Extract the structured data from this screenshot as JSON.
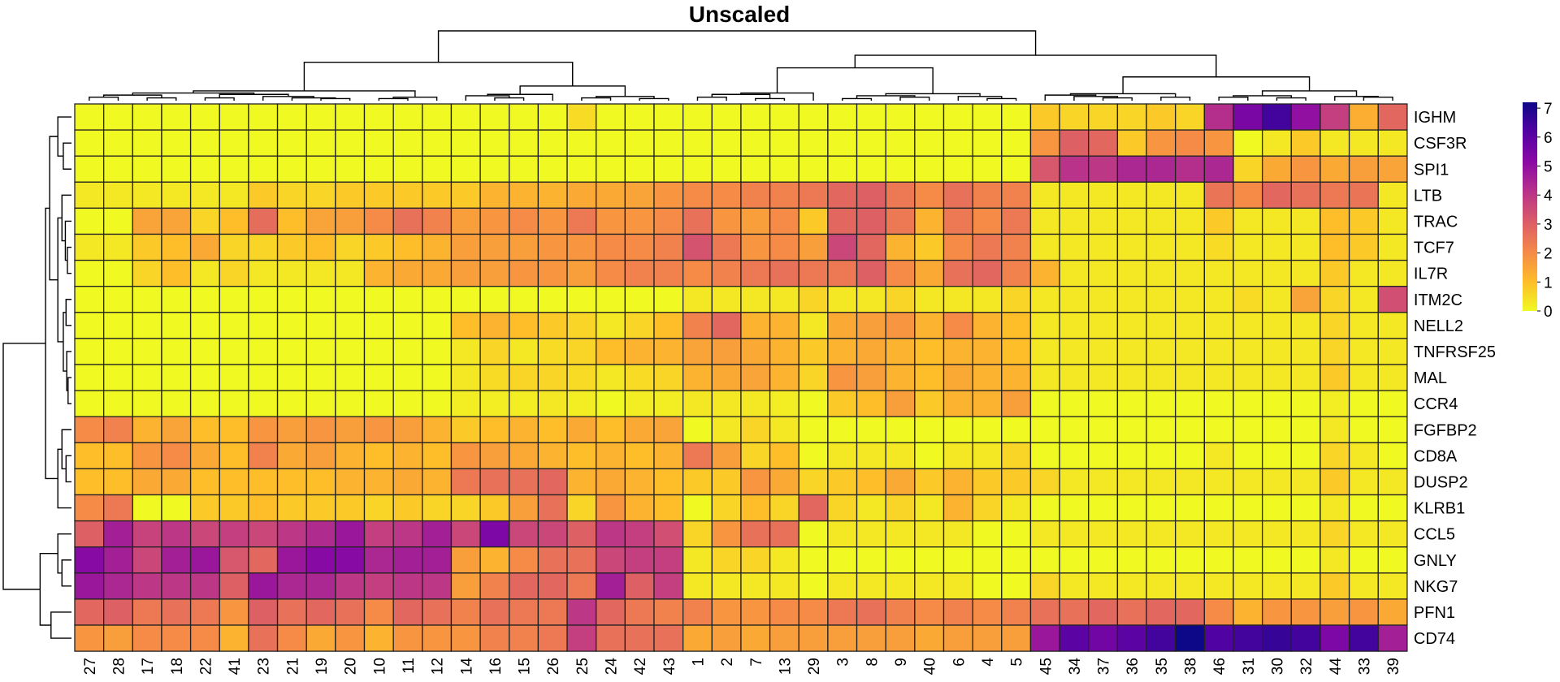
{
  "chart_data": {
    "type": "heatmap",
    "title": "Unscaled",
    "rows": [
      "IGHM",
      "CSF3R",
      "SPI1",
      "LTB",
      "TRAC",
      "TCF7",
      "IL7R",
      "ITM2C",
      "NELL2",
      "TNFRSF25",
      "MAL",
      "CCR4",
      "FGFBP2",
      "CD8A",
      "DUSP2",
      "KLRB1",
      "CCL5",
      "GNLY",
      "NKG7",
      "PFN1",
      "CD74"
    ],
    "columns": [
      "27",
      "28",
      "17",
      "18",
      "22",
      "41",
      "23",
      "21",
      "19",
      "20",
      "10",
      "11",
      "12",
      "14",
      "16",
      "15",
      "26",
      "25",
      "24",
      "42",
      "43",
      "1",
      "2",
      "7",
      "13",
      "29",
      "3",
      "8",
      "9",
      "40",
      "6",
      "4",
      "5",
      "45",
      "34",
      "37",
      "36",
      "35",
      "38",
      "46",
      "31",
      "30",
      "32",
      "44",
      "33",
      "39"
    ],
    "values": [
      [
        0,
        0,
        0,
        0,
        0,
        0,
        0,
        0,
        0,
        0,
        0,
        0,
        0,
        0,
        0,
        0,
        0,
        0.5,
        0,
        0,
        0,
        0,
        0,
        0,
        0,
        0,
        0,
        0,
        0,
        0,
        0,
        0,
        0,
        0.8,
        0.6,
        0.6,
        0.6,
        0.8,
        0.6,
        4.2,
        5.5,
        6.4,
        5,
        3.8,
        1.3,
        2.8
      ],
      [
        0,
        0,
        0,
        0,
        0,
        0,
        0,
        0,
        0,
        0,
        0,
        0,
        0,
        0,
        0,
        0,
        0,
        0,
        0,
        0,
        0,
        0,
        0,
        0,
        0,
        0,
        0,
        0,
        0,
        0,
        0,
        0,
        0,
        1.8,
        3,
        2.8,
        0.8,
        1.8,
        2,
        1.8,
        0,
        0.3,
        0.8,
        0.3,
        0.3,
        0.3
      ],
      [
        0,
        0,
        0,
        0,
        0,
        0,
        0,
        0,
        0,
        0,
        0,
        0,
        0,
        0,
        0,
        0,
        0,
        0,
        0,
        0,
        0,
        0,
        0,
        0,
        0,
        0,
        0,
        0,
        0,
        0,
        0,
        0,
        0,
        3.2,
        4.1,
        4,
        4.4,
        4.4,
        4.2,
        4.4,
        0.6,
        1.4,
        1.8,
        1.4,
        1.6,
        1.5
      ],
      [
        0.3,
        0.3,
        0.3,
        0.3,
        0.3,
        0.3,
        0.8,
        0.6,
        0.6,
        0.8,
        0.8,
        0.8,
        0.8,
        0.8,
        1.2,
        1.2,
        1.2,
        1.4,
        1.4,
        1.5,
        1.8,
        2,
        2,
        2.2,
        2.2,
        2.4,
        2.8,
        3,
        2.4,
        2,
        2.6,
        2.2,
        2.2,
        0.3,
        0.3,
        0.3,
        0.3,
        0.3,
        0.3,
        2.5,
        2,
        2.8,
        2.6,
        2.4,
        2.5,
        0.3
      ],
      [
        0,
        0,
        1.5,
        1.5,
        0.6,
        1,
        2.7,
        1,
        1.5,
        1.6,
        2,
        2.6,
        2.2,
        1.6,
        1.8,
        2,
        1.8,
        2.4,
        1.8,
        1.8,
        2,
        2.6,
        1.8,
        1.6,
        2,
        0.8,
        2.8,
        3,
        2.4,
        1.2,
        2.4,
        2,
        2.4,
        0.3,
        0.3,
        0.3,
        0.3,
        0.3,
        0.3,
        0.8,
        0.3,
        0.3,
        0.3,
        1,
        0.8,
        0.3
      ],
      [
        0.3,
        0.3,
        0.8,
        1,
        1.4,
        0.6,
        0.6,
        0.8,
        1,
        0.6,
        0.8,
        1,
        1.2,
        1.6,
        1.6,
        1.6,
        1.8,
        1.8,
        2,
        2,
        2.2,
        3.3,
        2.4,
        1.8,
        2,
        1.6,
        3.6,
        2.8,
        1.2,
        0.8,
        2,
        2.4,
        2.2,
        0.3,
        0.3,
        0.3,
        0.3,
        0.3,
        0.3,
        0.5,
        0.3,
        0.3,
        0.3,
        1,
        0.8,
        0.3
      ],
      [
        0,
        0,
        0.6,
        1,
        0.3,
        0.6,
        0.3,
        0.3,
        0.3,
        0.3,
        1.2,
        1.4,
        1.4,
        1.6,
        1.6,
        1.8,
        1.8,
        1.6,
        2,
        2.2,
        2.2,
        2,
        2.2,
        2.4,
        2.6,
        2.4,
        2.4,
        3,
        2,
        1.4,
        2.6,
        2.8,
        2.2,
        1.2,
        0.3,
        0.3,
        0.3,
        0.3,
        0.3,
        0.3,
        0.3,
        0.3,
        0.3,
        0.8,
        0.3,
        0.3
      ],
      [
        0,
        0,
        0,
        0,
        0,
        0,
        0,
        0,
        0,
        0,
        0,
        0,
        0,
        0,
        0,
        0,
        0,
        0,
        0,
        0,
        0,
        0.3,
        0.3,
        0.3,
        0.3,
        0.6,
        0.3,
        0.3,
        0.6,
        0.3,
        0.3,
        0.3,
        0.6,
        0.3,
        0.3,
        0.3,
        0.3,
        0.3,
        0.3,
        0.3,
        0.5,
        0.3,
        1.5,
        0.6,
        0.3,
        3.4
      ],
      [
        0,
        0,
        0,
        0,
        0,
        0,
        0,
        0,
        0,
        0,
        0,
        0,
        0,
        1,
        1.2,
        1,
        0.8,
        0.6,
        0.3,
        0.6,
        1,
        2.2,
        2.8,
        1.2,
        1.2,
        0.3,
        1.4,
        1.6,
        1.8,
        1.2,
        2,
        1.2,
        1,
        0.3,
        0.3,
        0.3,
        0.3,
        0.3,
        0.3,
        0.3,
        0.3,
        0.3,
        0.3,
        0.6,
        0.3,
        0.3
      ],
      [
        0,
        0,
        0,
        0,
        0,
        0,
        0,
        0,
        0,
        0,
        0,
        0,
        0,
        0.3,
        0.6,
        0.3,
        0.5,
        0.6,
        1,
        1.2,
        1.2,
        1.5,
        1.6,
        1.4,
        1.2,
        0.8,
        1.2,
        1.4,
        1.2,
        1,
        1.2,
        1.2,
        1,
        0.3,
        0.3,
        0.3,
        0.3,
        0.3,
        0.3,
        0.3,
        0.3,
        0.3,
        0.3,
        0.6,
        0.3,
        0.3
      ],
      [
        0,
        0,
        0,
        0,
        0,
        0,
        0,
        0,
        0,
        0,
        0,
        0,
        0,
        0.3,
        0.5,
        0.6,
        0.6,
        0.5,
        0.3,
        0.5,
        0.6,
        1.2,
        1.4,
        1.5,
        1.2,
        0.6,
        1.8,
        1.6,
        1.2,
        1,
        1.4,
        1.2,
        1.2,
        0.3,
        0.3,
        0.3,
        0.3,
        0.3,
        0.3,
        0.3,
        0.3,
        0.3,
        0.3,
        0.8,
        0.3,
        0.3
      ],
      [
        0,
        0,
        0,
        0,
        0,
        0,
        0,
        0,
        0,
        0,
        0,
        0,
        0,
        0.2,
        0.2,
        0.2,
        0.3,
        0.2,
        0,
        0.2,
        0.2,
        0.3,
        0.3,
        0.3,
        0.2,
        0,
        0.8,
        1,
        1.6,
        0.8,
        1.2,
        1.2,
        1.6,
        0,
        0,
        0,
        0,
        0,
        0,
        0,
        0,
        0,
        0,
        0.2,
        0,
        0
      ],
      [
        2,
        2.2,
        1.2,
        1.5,
        1,
        1,
        1.8,
        1.6,
        1.8,
        1.6,
        1.8,
        1.6,
        1.2,
        0.8,
        1,
        1.2,
        1,
        1.4,
        1,
        1.4,
        1.5,
        0,
        0.3,
        0.6,
        0.3,
        0,
        0,
        0,
        0,
        0,
        0,
        0,
        0,
        0,
        0,
        0,
        0,
        0,
        0,
        0,
        0,
        0,
        0,
        0.3,
        0,
        0
      ],
      [
        1,
        1,
        1.8,
        2,
        1.4,
        1,
        2.2,
        1.4,
        1.6,
        1.2,
        1,
        1.2,
        1,
        1.8,
        1.6,
        1.4,
        1.2,
        1,
        1.2,
        1,
        1.2,
        2.4,
        1.6,
        0.6,
        1,
        0,
        0.3,
        0.3,
        0.3,
        0,
        0.3,
        0.3,
        0.6,
        0,
        0,
        0,
        0,
        0,
        0,
        0.3,
        0,
        0,
        0,
        0.6,
        0.3,
        0
      ],
      [
        1,
        1,
        1.4,
        1.4,
        1,
        1,
        1,
        1,
        1,
        1.2,
        1.2,
        1.4,
        1.2,
        2.4,
        2.6,
        2.6,
        2.8,
        1.2,
        1.4,
        1.2,
        1,
        0.8,
        0.8,
        1.8,
        1.4,
        0.6,
        0.8,
        1,
        1.4,
        0.8,
        1.2,
        0.8,
        0.8,
        0.6,
        0.3,
        0.3,
        0.3,
        0.3,
        0.3,
        0.3,
        0.3,
        0.3,
        0.3,
        0.8,
        0.3,
        0.3
      ],
      [
        2,
        2.4,
        0,
        0,
        0.8,
        0.8,
        1,
        0.8,
        0.8,
        0.8,
        0.6,
        0.8,
        0.6,
        0.6,
        0.8,
        1.6,
        2.6,
        0.6,
        1.8,
        1.2,
        1,
        0,
        0.6,
        1,
        0.6,
        2.8,
        0.6,
        0.3,
        0.6,
        0.3,
        1.2,
        0.6,
        0.3,
        0,
        0,
        0,
        0,
        0,
        0,
        0,
        0,
        0,
        0,
        0.3,
        0,
        0
      ],
      [
        3,
        4.6,
        3.7,
        4,
        3.6,
        3.8,
        3.6,
        4,
        4.3,
        4.8,
        3.8,
        4,
        4.6,
        3.6,
        5.4,
        3.6,
        3.6,
        3,
        4,
        3.8,
        3.4,
        0.6,
        1.8,
        2.6,
        2.6,
        0,
        0.3,
        0.3,
        0.3,
        0.3,
        0.3,
        0,
        0,
        0.3,
        0.3,
        0.3,
        0.3,
        0.3,
        0.3,
        0.3,
        0.3,
        0.3,
        0.3,
        0.6,
        0.3,
        0.3
      ],
      [
        5.2,
        4.6,
        3.6,
        4.6,
        4.8,
        3.2,
        2.8,
        4.8,
        5.2,
        5.2,
        4.4,
        4.6,
        4.6,
        1.6,
        1.2,
        2,
        2.6,
        2.6,
        3.6,
        3.8,
        3.8,
        0.3,
        0.6,
        0.6,
        0.3,
        0,
        0,
        0,
        0,
        0,
        0,
        0,
        0,
        0,
        0,
        0,
        0,
        0,
        0,
        0,
        0,
        0,
        0,
        0.3,
        0,
        0
      ],
      [
        4.8,
        4.4,
        4,
        4,
        4,
        3,
        4.8,
        4.4,
        4.4,
        4,
        3.8,
        4,
        4,
        1.6,
        2.2,
        2.8,
        2.8,
        2.4,
        4.6,
        3,
        3.8,
        0.3,
        0.3,
        0.3,
        0.3,
        0,
        0.3,
        0.3,
        0.3,
        0.3,
        0.3,
        0,
        0,
        0.6,
        0.3,
        0.3,
        0.3,
        0.3,
        0.3,
        0.3,
        0.3,
        0.3,
        0.3,
        0.8,
        0.3,
        0.3
      ],
      [
        2.8,
        3,
        2.4,
        2.6,
        2.4,
        1.8,
        3,
        2.6,
        2.8,
        2.6,
        2,
        2.8,
        2.6,
        2.2,
        2.6,
        2.4,
        2.4,
        4,
        2.8,
        2.4,
        2.2,
        2.2,
        1.8,
        1.8,
        2,
        2,
        2.4,
        2.6,
        2.2,
        2,
        2.2,
        2,
        2.2,
        2.6,
        2.6,
        2.8,
        2.6,
        2.8,
        2.8,
        2,
        1.2,
        1.8,
        1.8,
        1.6,
        1.8,
        1.4
      ],
      [
        1.8,
        1.6,
        2,
        2,
        2,
        1.2,
        2.6,
        2,
        1.4,
        1.8,
        1.2,
        1.8,
        1.8,
        1.8,
        2.2,
        2.2,
        2.4,
        3.8,
        2.6,
        2.6,
        2.6,
        1.4,
        1.6,
        1.4,
        1.6,
        1.6,
        1.6,
        1.6,
        1.6,
        1.4,
        1.6,
        1.6,
        1.6,
        4.8,
        6,
        5.6,
        6,
        6.4,
        7.2,
        6.2,
        6.4,
        6.6,
        6.4,
        5.4,
        6.4,
        4.6
      ]
    ],
    "legend": {
      "ticks": [
        0,
        1,
        2,
        3,
        4,
        5,
        6,
        7
      ],
      "range": [
        0,
        7.2
      ],
      "placement": "right"
    },
    "colors": [
      "#F0F921",
      "#FEBC2A",
      "#F48849",
      "#DB5C68",
      "#B83289",
      "#8B0AA5",
      "#5302A3",
      "#0D0887"
    ]
  }
}
